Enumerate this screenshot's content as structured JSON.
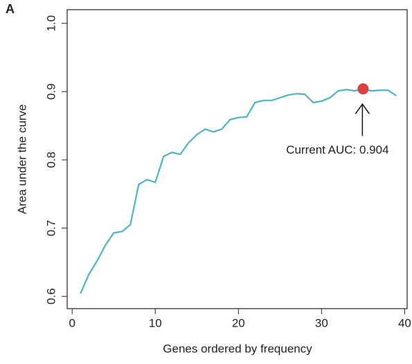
{
  "chart_data": {
    "type": "line",
    "panel_label": "A",
    "x_label": "Genes ordered by frequency",
    "y_label": "Area under the curve",
    "x": [
      1,
      2,
      3,
      4,
      5,
      6,
      7,
      8,
      9,
      10,
      11,
      12,
      13,
      14,
      15,
      16,
      17,
      18,
      19,
      20,
      21,
      22,
      23,
      24,
      25,
      26,
      27,
      28,
      29,
      30,
      31,
      32,
      33,
      34,
      35,
      36,
      37,
      38,
      39
    ],
    "series": [
      {
        "color": "#4bb3cc",
        "values": [
          0.604,
          0.632,
          0.652,
          0.675,
          0.693,
          0.695,
          0.705,
          0.764,
          0.771,
          0.767,
          0.805,
          0.811,
          0.808,
          0.825,
          0.837,
          0.845,
          0.841,
          0.845,
          0.859,
          0.862,
          0.863,
          0.884,
          0.887,
          0.887,
          0.891,
          0.895,
          0.897,
          0.896,
          0.884,
          0.886,
          0.891,
          0.901,
          0.903,
          0.901,
          0.904,
          0.901,
          0.902,
          0.902,
          0.894
        ]
      }
    ],
    "highlight": {
      "x": 35,
      "y": 0.904,
      "color": "#d9423e",
      "label": "Current AUC: 0.904"
    },
    "xlim": [
      -0.6,
      40.3
    ],
    "ylim": [
      0.582,
      1.02
    ],
    "xticks": [
      0,
      10,
      20,
      30,
      40
    ],
    "yticks": [
      0.6,
      0.7,
      0.8,
      0.9,
      {
        "value": 1.0,
        "label": "1.0"
      }
    ]
  }
}
